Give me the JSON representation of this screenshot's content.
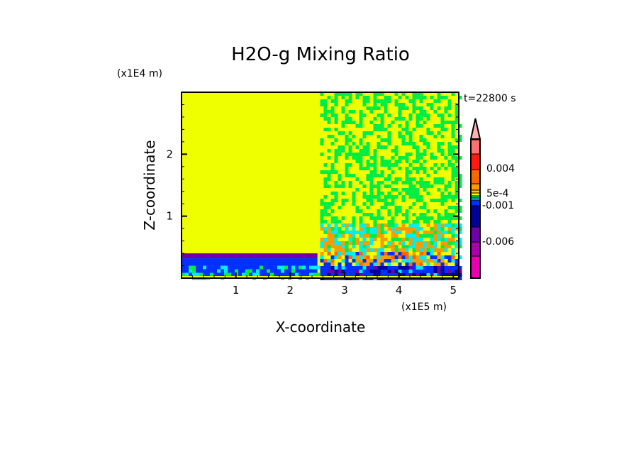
{
  "chart_data": {
    "type": "heatmap",
    "title": "H2O-g Mixing Ratio",
    "xlabel": "X-coordinate",
    "ylabel": "Z-coordinate",
    "x_unit": "(x1E5 m)",
    "y_unit": "(x1E4 m)",
    "time_label": "t=22800 s",
    "xlim": [
      0,
      5.1
    ],
    "ylim": [
      0,
      3
    ],
    "xticks": [
      "1",
      "2",
      "3",
      "4",
      "5"
    ],
    "xtick_values": [
      1,
      2,
      3,
      4,
      5
    ],
    "yticks": [
      "1",
      "2"
    ],
    "ytick_values": [
      1,
      2
    ],
    "colorbar": {
      "labels": [
        "0.004",
        "5e-4",
        "-0.001",
        "-0.006"
      ],
      "colors": [
        "#ffb0b0",
        "#ff7070",
        "#ff1a10",
        "#ff6600",
        "#ff9900",
        "#ffcc00",
        "#f0ff00",
        "#00ee44",
        "#00eeee",
        "#0030ff",
        "#000099",
        "#7000aa",
        "#aa00aa",
        "#e800b0"
      ],
      "extend": "max"
    }
  }
}
